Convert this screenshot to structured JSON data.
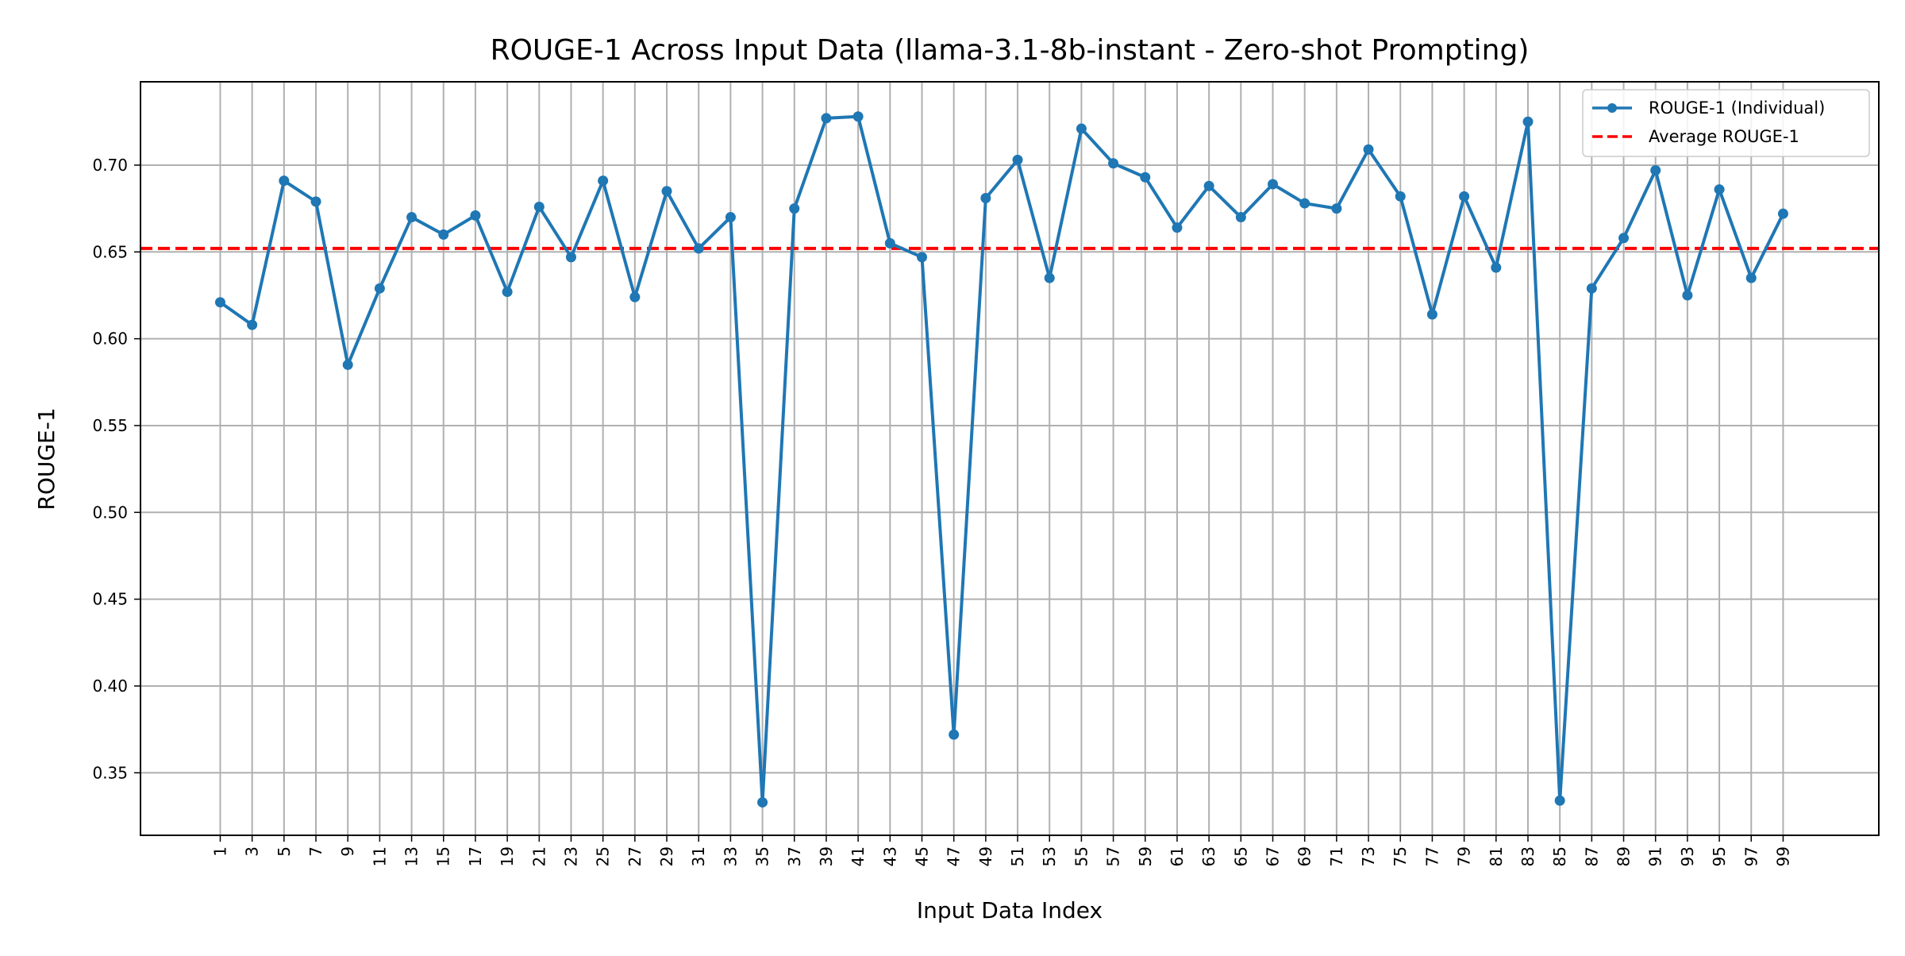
{
  "chart_data": {
    "type": "line",
    "title": "ROUGE-1 Across Input Data (llama-3.1-8b-instant - Zero-shot Prompting)",
    "xlabel": "Input Data Index",
    "ylabel": "ROUGE-1",
    "x": [
      1,
      3,
      5,
      7,
      9,
      11,
      13,
      15,
      17,
      19,
      21,
      23,
      25,
      27,
      29,
      31,
      33,
      35,
      37,
      39,
      41,
      43,
      45,
      47,
      49,
      51,
      53,
      55,
      57,
      59,
      61,
      63,
      65,
      67,
      69,
      71,
      73,
      75,
      77,
      79,
      81,
      83,
      85,
      87,
      89,
      91,
      93,
      95,
      97,
      99
    ],
    "xticks": [
      "1",
      "3",
      "5",
      "7",
      "9",
      "11",
      "13",
      "15",
      "17",
      "19",
      "21",
      "23",
      "25",
      "27",
      "29",
      "31",
      "33",
      "35",
      "37",
      "39",
      "41",
      "43",
      "45",
      "47",
      "49",
      "51",
      "53",
      "55",
      "57",
      "59",
      "61",
      "63",
      "65",
      "67",
      "69",
      "71",
      "73",
      "75",
      "77",
      "79",
      "81",
      "83",
      "85",
      "87",
      "89",
      "91",
      "93",
      "95",
      "97",
      "99"
    ],
    "yticks": [
      "0.35",
      "0.40",
      "0.45",
      "0.50",
      "0.55",
      "0.60",
      "0.65",
      "0.70"
    ],
    "ylim": [
      0.314,
      0.748
    ],
    "xlim": [
      -4,
      105
    ],
    "grid": true,
    "legend_position": "top-right",
    "series": [
      {
        "name": "ROUGE-1 (Individual)",
        "style": "solid line with circle markers",
        "color": "#1f77b4",
        "values": [
          0.621,
          0.608,
          0.691,
          0.679,
          0.585,
          0.629,
          0.67,
          0.66,
          0.671,
          0.627,
          0.676,
          0.647,
          0.691,
          0.624,
          0.685,
          0.652,
          0.67,
          0.333,
          0.675,
          0.727,
          0.728,
          0.655,
          0.647,
          0.372,
          0.681,
          0.703,
          0.635,
          0.721,
          0.701,
          0.693,
          0.664,
          0.688,
          0.67,
          0.689,
          0.678,
          0.675,
          0.709,
          0.682,
          0.614,
          0.682,
          0.641,
          0.725,
          0.334,
          0.629,
          0.658,
          0.697,
          0.625,
          0.686,
          0.635,
          0.672
        ]
      },
      {
        "name": "Average ROUGE-1",
        "style": "dashed horizontal line",
        "color": "#ff0000",
        "value": 0.652
      }
    ]
  }
}
